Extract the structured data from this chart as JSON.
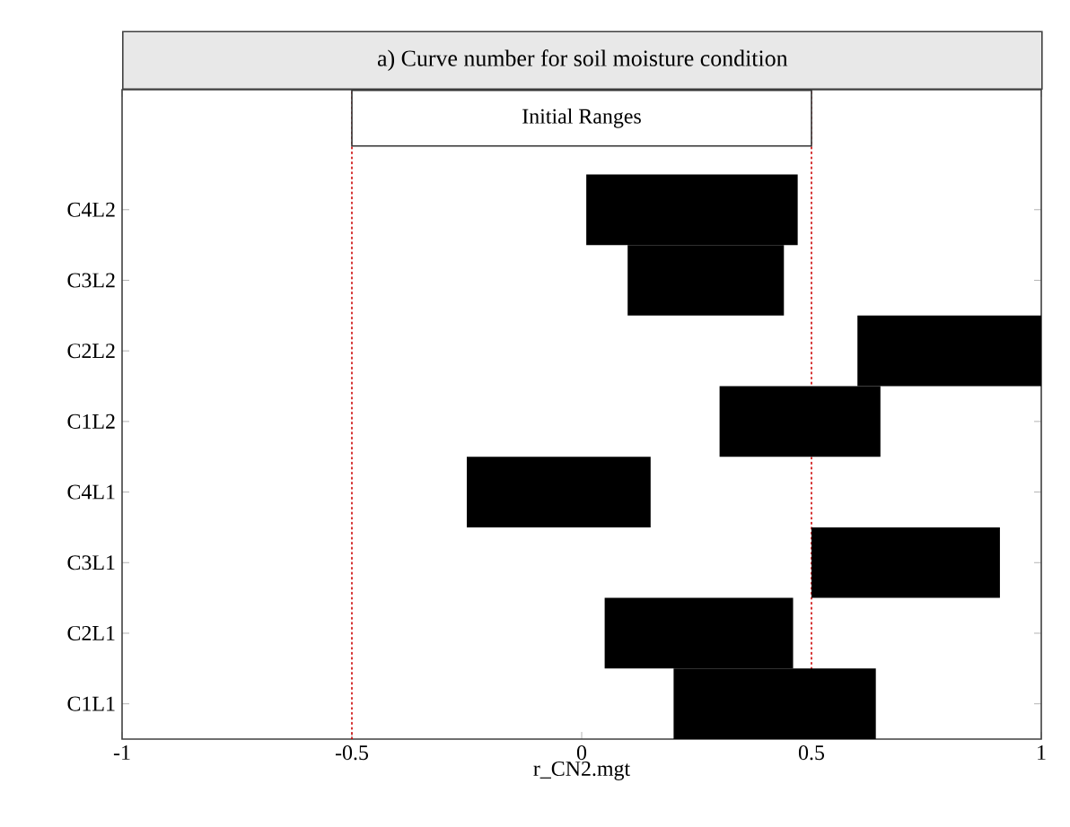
{
  "chart_data": {
    "type": "bar",
    "orientation": "horizontal",
    "title": "a) Curve number for soil moisture condition",
    "xlabel": "r_CN2.mgt",
    "categories": [
      "C4L2",
      "C3L2",
      "C2L2",
      "C1L2",
      "C4L1",
      "C3L1",
      "C2L1",
      "C1L1"
    ],
    "base": [
      0.01,
      0.1,
      0.6,
      0.3,
      -0.25,
      0.5,
      0.05,
      0.2
    ],
    "values": [
      0.46,
      0.34,
      0.4,
      0.35,
      0.4,
      0.41,
      0.41,
      0.44
    ],
    "color": "#000000",
    "xlim": [
      -1,
      1
    ],
    "xticks": [
      -1,
      -0.5,
      0,
      0.5,
      1
    ],
    "ref_lines": [
      {
        "axis": "x",
        "value": -0.5,
        "color": "#cc0000",
        "line_style": "dotted"
      },
      {
        "axis": "x",
        "value": 0.5,
        "color": "#cc0000",
        "line_style": "dotted"
      }
    ],
    "annotations": [
      "Initial Ranges"
    ]
  }
}
